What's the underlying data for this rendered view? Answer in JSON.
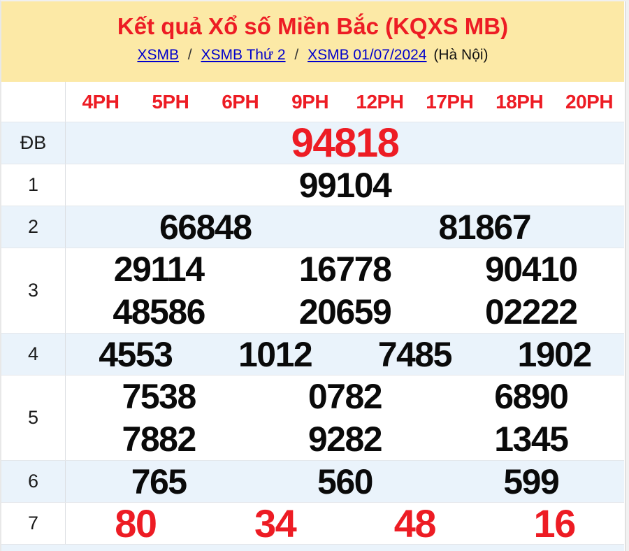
{
  "header": {
    "title": "Kết quả Xổ số Miền Bắc (KQXS MB)",
    "breadcrumb_links": [
      "XSMB",
      "XSMB Thứ 2",
      "XSMB 01/07/2024"
    ],
    "breadcrumb_separator": "/",
    "breadcrumb_suffix": "(Hà Nội)"
  },
  "table": {
    "time_columns": [
      "4PH",
      "5PH",
      "6PH",
      "9PH",
      "12PH",
      "17PH",
      "18PH",
      "20PH"
    ],
    "rows": [
      {
        "label": "ĐB",
        "style": "special",
        "lines": [
          [
            "94818"
          ]
        ]
      },
      {
        "label": "1",
        "style": "normal",
        "lines": [
          [
            "99104"
          ]
        ]
      },
      {
        "label": "2",
        "style": "normal",
        "lines": [
          [
            "66848",
            "81867"
          ]
        ]
      },
      {
        "label": "3",
        "style": "normal",
        "lines": [
          [
            "29114",
            "16778",
            "90410"
          ],
          [
            "48586",
            "20659",
            "02222"
          ]
        ]
      },
      {
        "label": "4",
        "style": "normal",
        "lines": [
          [
            "4553",
            "1012",
            "7485",
            "1902"
          ]
        ]
      },
      {
        "label": "5",
        "style": "normal",
        "lines": [
          [
            "7538",
            "0782",
            "6890"
          ],
          [
            "7882",
            "9282",
            "1345"
          ]
        ]
      },
      {
        "label": "6",
        "style": "normal",
        "lines": [
          [
            "765",
            "560",
            "599"
          ]
        ]
      },
      {
        "label": "7",
        "style": "last",
        "lines": [
          [
            "80",
            "34",
            "48",
            "16"
          ]
        ]
      }
    ]
  },
  "colors": {
    "header_bg": "#FCE9A6",
    "accent_red": "#ED1C24",
    "row_alt_bg": "#EAF3FB",
    "link_blue": "#0000CC",
    "number_black": "#0A0A0A",
    "border_gray": "#E4E7EB"
  }
}
